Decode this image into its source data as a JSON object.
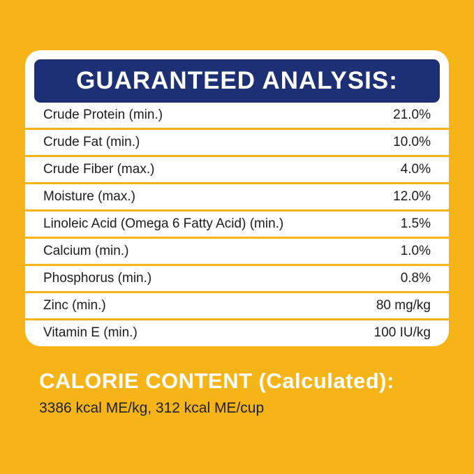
{
  "colors": {
    "background_yellow": "#F6B417",
    "header_blue": "#1D3076",
    "card_white": "#FFFFFF",
    "row_text_dark": "#1C1C1C",
    "calorie_title_white": "#FFFFFF"
  },
  "card": {
    "title": "GUARANTEED ANALYSIS:",
    "rows": [
      {
        "label": "Crude Protein (min.)",
        "value": "21.0%"
      },
      {
        "label": "Crude Fat (min.)",
        "value": "10.0%"
      },
      {
        "label": "Crude Fiber (max.)",
        "value": "4.0%"
      },
      {
        "label": "Moisture (max.)",
        "value": "12.0%"
      },
      {
        "label": "Linoleic Acid (Omega 6 Fatty Acid) (min.)",
        "value": "1.5%"
      },
      {
        "label": "Calcium (min.)",
        "value": "1.0%"
      },
      {
        "label": "Phosphorus (min.)",
        "value": "0.8%"
      },
      {
        "label": "Zinc (min.)",
        "value": "80 mg/kg"
      },
      {
        "label": "Vitamin E (min.)",
        "value": "100 IU/kg"
      }
    ]
  },
  "calorie": {
    "title": "CALORIE CONTENT (Calculated):",
    "values": "3386 kcal ME/kg, 312 kcal ME/cup"
  }
}
